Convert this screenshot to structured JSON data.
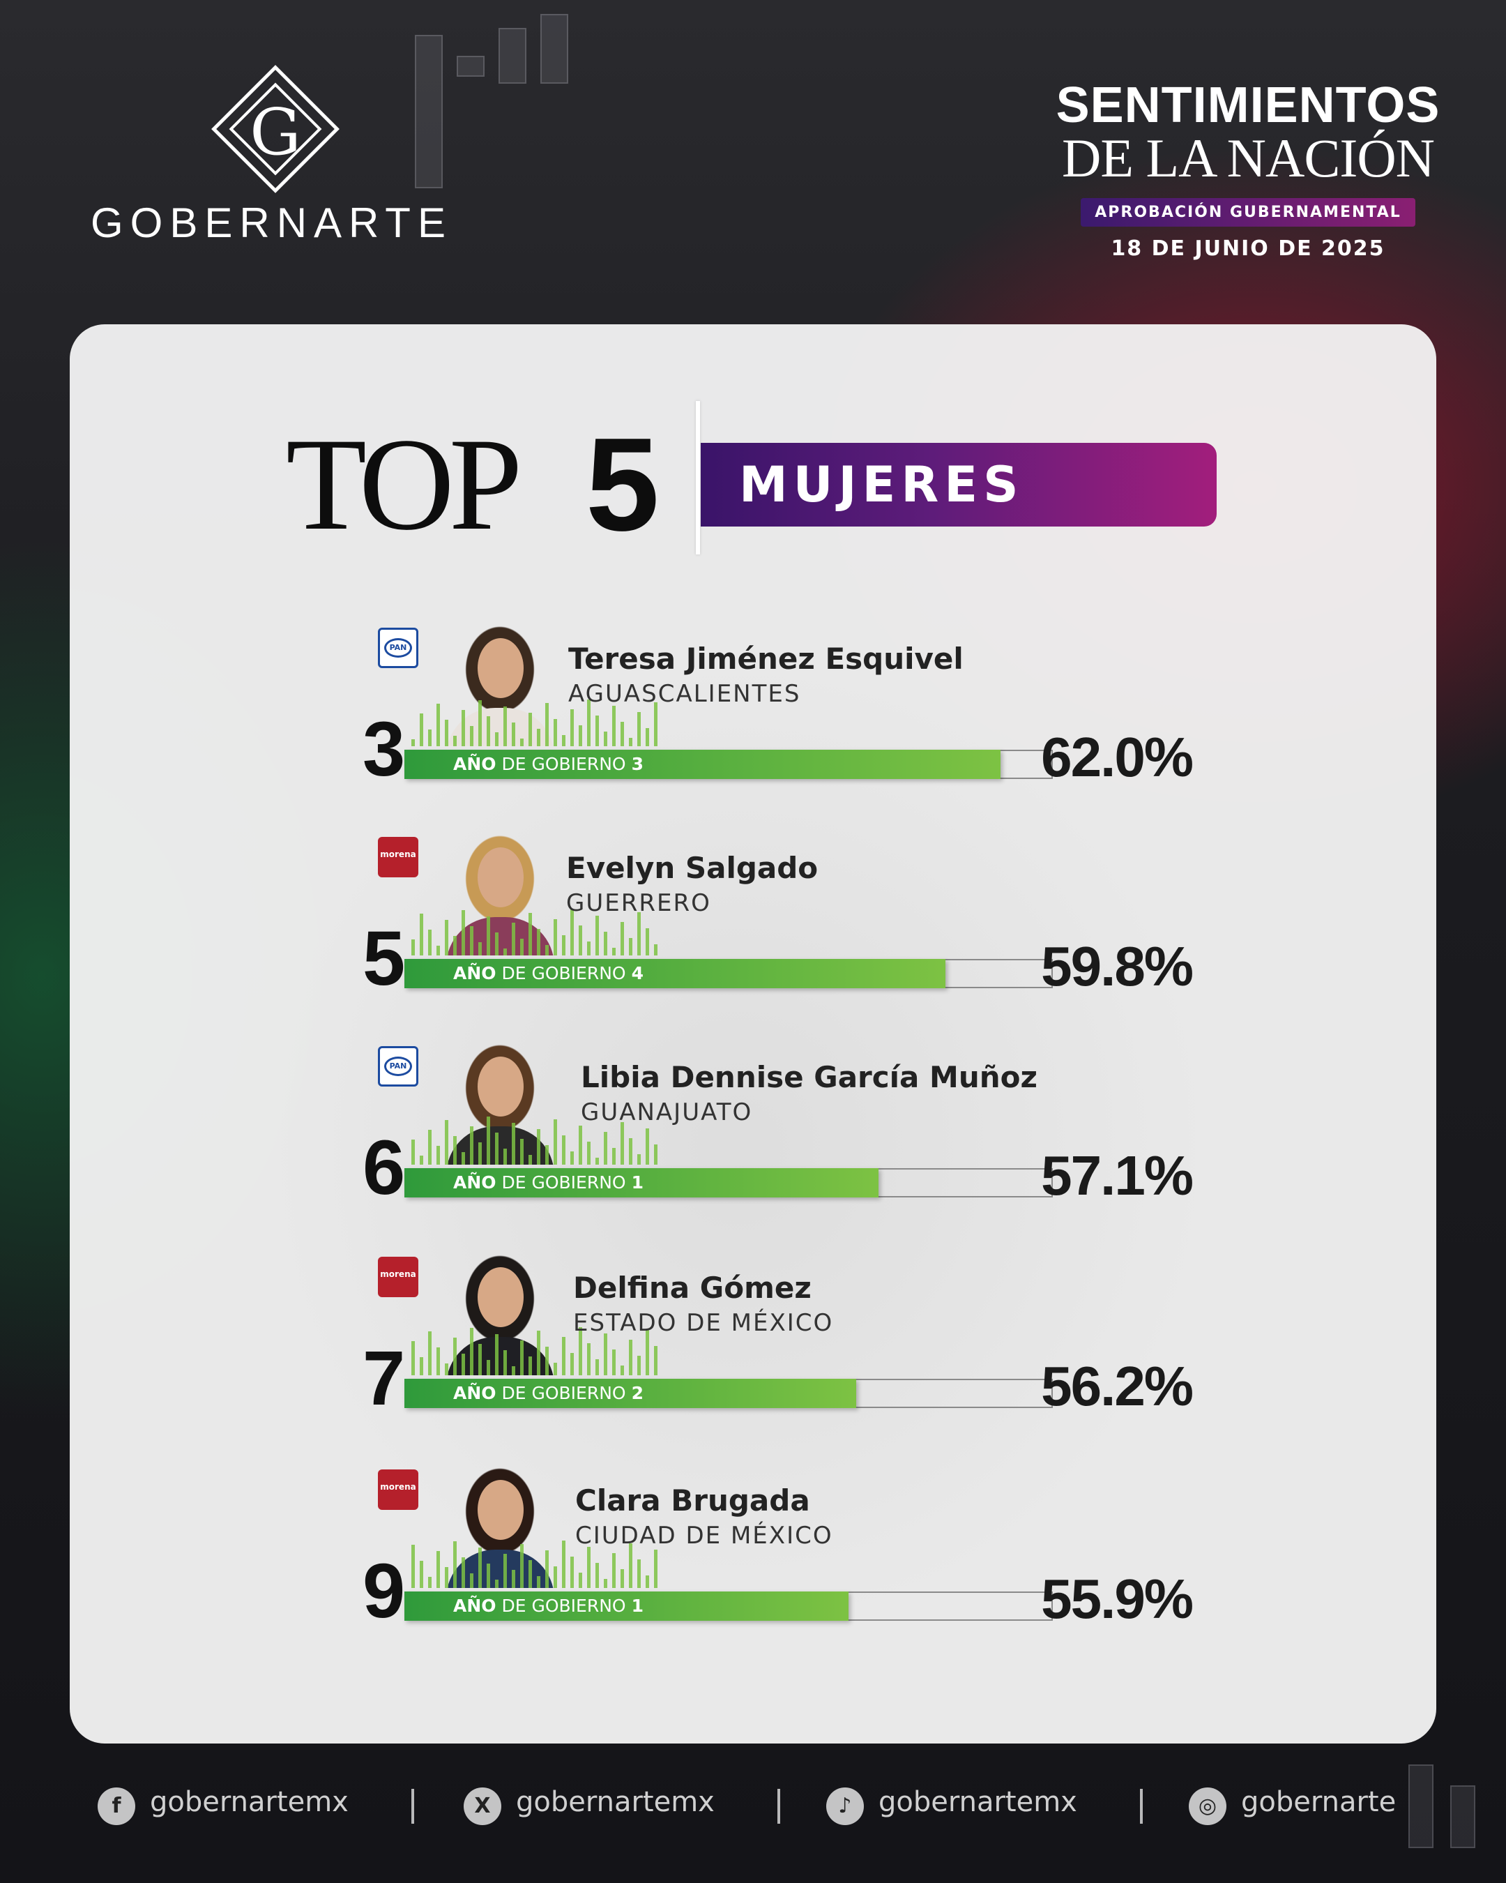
{
  "brand": {
    "name": "GOBERNARTE",
    "monogram": "G"
  },
  "header": {
    "title_line1": "SENTIMIENTOS",
    "title_line2": "DE LA NACIÓN",
    "badge": "APROBACIÓN GUBERNAMENTAL",
    "date": "18 DE JUNIO DE 2025"
  },
  "heading": {
    "top": "TOP",
    "number": "5",
    "category": "MUJERES"
  },
  "colors": {
    "bar_start": "#2f9a3b",
    "bar_end": "#7dc243",
    "badge_start": "#3a1469",
    "badge_end": "#a21e7c",
    "pan_blue": "#1c4ba0",
    "morena_red": "#b5202b"
  },
  "chart_data": {
    "type": "bar",
    "title": "TOP 5 MUJERES",
    "xlabel": "",
    "ylabel": "",
    "categories": [
      "Teresa Jiménez Esquivel",
      "Evelyn Salgado",
      "Libia Dennise García Muñoz",
      "Delfina Gómez",
      "Clara Brugada"
    ],
    "values": [
      62.0,
      59.8,
      57.1,
      56.2,
      55.9
    ],
    "unit": "%"
  },
  "governors": [
    {
      "rank": "3",
      "name": "Teresa Jiménez Esquivel",
      "state": "AGUASCALIENTES",
      "party": "PAN",
      "party_icon": "pan-logo-icon",
      "year_label": "AÑO",
      "year_mid": "DE GOBIERNO",
      "year_num": "3",
      "value": 62.0,
      "pct": "62.0%"
    },
    {
      "rank": "5",
      "name": "Evelyn Salgado",
      "state": "GUERRERO",
      "party": "morena",
      "party_icon": "morena-logo-icon",
      "year_label": "AÑO",
      "year_mid": "DE GOBIERNO",
      "year_num": "4",
      "value": 59.8,
      "pct": "59.8%"
    },
    {
      "rank": "6",
      "name": "Libia Dennise García Muñoz",
      "state": "GUANAJUATO",
      "party": "PAN",
      "party_icon": "pan-logo-icon",
      "year_label": "AÑO",
      "year_mid": "DE GOBIERNO",
      "year_num": "1",
      "value": 57.1,
      "pct": "57.1%"
    },
    {
      "rank": "7",
      "name": "Delfina Gómez",
      "state": "ESTADO DE MÉXICO",
      "party": "morena",
      "party_icon": "morena-logo-icon",
      "year_label": "AÑO",
      "year_mid": "DE GOBIERNO",
      "year_num": "2",
      "value": 56.2,
      "pct": "56.2%"
    },
    {
      "rank": "9",
      "name": "Clara Brugada",
      "state": "CIUDAD DE MÉXICO",
      "party": "morena",
      "party_icon": "morena-logo-icon",
      "year_label": "AÑO",
      "year_mid": "DE GOBIERNO",
      "year_num": "1",
      "value": 55.9,
      "pct": "55.9%"
    }
  ],
  "footer": {
    "socials": [
      {
        "icon": "facebook-icon",
        "glyph": "f",
        "handle": "gobernartemx"
      },
      {
        "icon": "x-icon",
        "glyph": "X",
        "handle": "gobernartemx"
      },
      {
        "icon": "tiktok-icon",
        "glyph": "♪",
        "handle": "gobernartemx"
      },
      {
        "icon": "instagram-icon",
        "glyph": "◎",
        "handle": "gobernarte"
      }
    ]
  }
}
